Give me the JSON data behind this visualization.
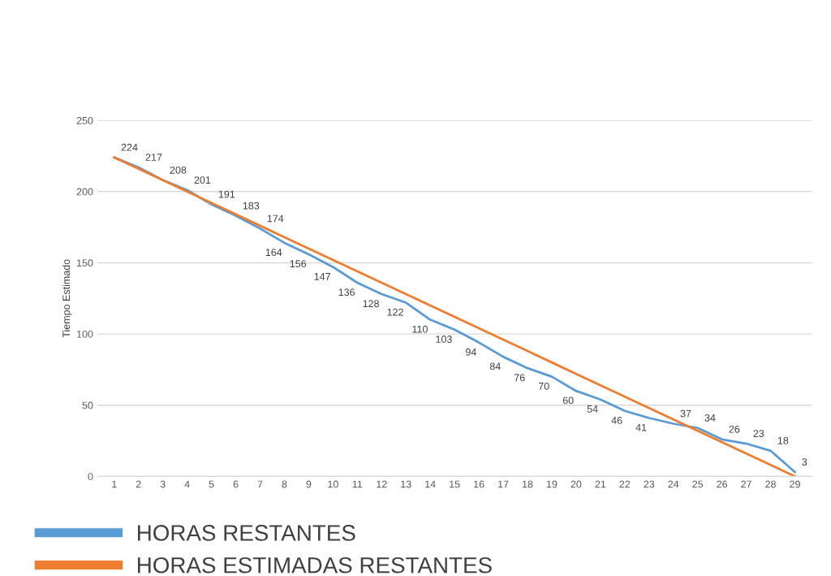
{
  "chart_data": {
    "type": "line",
    "ylabel": "Tiempo Estimado",
    "categories": [
      "1",
      "2",
      "3",
      "4",
      "5",
      "6",
      "7",
      "8",
      "9",
      "10",
      "11",
      "12",
      "13",
      "14",
      "15",
      "16",
      "17",
      "18",
      "19",
      "20",
      "21",
      "22",
      "23",
      "24",
      "25",
      "26",
      "27",
      "28",
      "29"
    ],
    "series": [
      {
        "name": "HORAS RESTANTES",
        "color": "#5b9bd5",
        "values": [
          224,
          217,
          208,
          201,
          191,
          183,
          174,
          164,
          156,
          147,
          136,
          128,
          122,
          110,
          103,
          94,
          84,
          76,
          70,
          60,
          54,
          46,
          41,
          37,
          34,
          26,
          23,
          18,
          3
        ],
        "value_labels": [
          "224",
          "217",
          "208",
          "201",
          "191",
          "183",
          "174",
          "164",
          "156",
          "147",
          "136",
          "128",
          "122",
          "110",
          "103",
          "94",
          "84",
          "76",
          "70",
          "60",
          "54",
          "46",
          "41",
          "37",
          "34",
          "26",
          "23",
          "18",
          "3"
        ]
      },
      {
        "name": "HORAS ESTIMADAS RESTANTES",
        "color": "#ed7d31",
        "values": [
          224,
          216,
          208,
          200,
          192,
          184,
          176,
          168,
          160,
          152,
          144,
          136,
          128,
          120,
          112,
          104,
          96,
          88,
          80,
          72,
          64,
          56,
          48,
          40,
          32,
          24,
          16,
          8,
          0
        ]
      }
    ],
    "ylim": [
      0,
      250
    ],
    "yticks": [
      0,
      50,
      100,
      150,
      200,
      250
    ],
    "grid": "y",
    "legend": "bottom",
    "marker": "none",
    "line_style": "solid"
  }
}
